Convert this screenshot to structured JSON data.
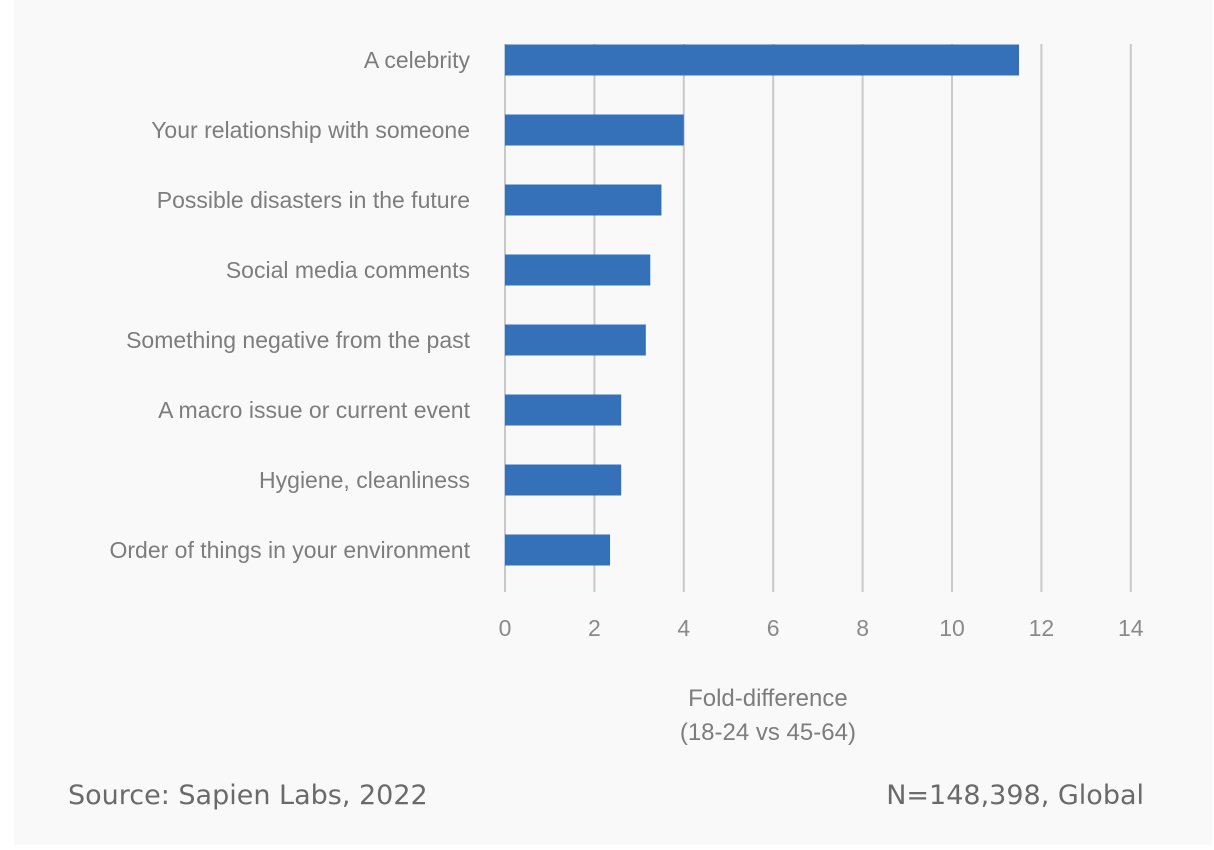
{
  "chart_data": {
    "type": "bar",
    "orientation": "horizontal",
    "categories": [
      "A celebrity",
      "Your relationship with someone",
      "Possible disasters in the future",
      "Social media comments",
      "Something negative from the past",
      "A macro issue or current event",
      "Hygiene, cleanliness",
      "Order of things in your environment"
    ],
    "values": [
      11.5,
      4.0,
      3.5,
      3.25,
      3.15,
      2.6,
      2.6,
      2.35
    ],
    "xlabel": [
      "Fold-difference",
      "(18-24 vs 45-64)"
    ],
    "xlim": [
      0,
      14
    ],
    "xticks": [
      "0",
      "2",
      "4",
      "6",
      "8",
      "10",
      "12",
      "14"
    ],
    "grid": "vertical",
    "bar_color": "#3571b8",
    "grid_color": "#c9c9c9"
  },
  "footer": {
    "source": "Source: Sapien Labs, 2022",
    "sample": "N=148,398, Global"
  }
}
